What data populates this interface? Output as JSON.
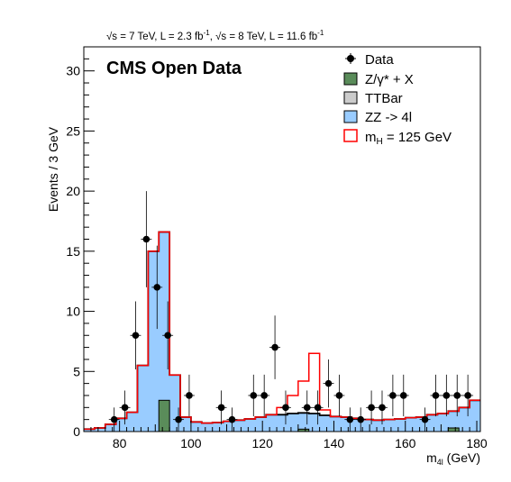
{
  "chart_data": {
    "type": "histogram",
    "header_parts": [
      "√s = 7 TeV, L = 2.3 fb",
      "-1",
      ", √s = 8 TeV, L = 11.6 fb",
      "-1"
    ],
    "title": "CMS Open Data",
    "xlabel_main": "m",
    "xlabel_sub": "4l",
    "xlabel_unit": " (GeV)",
    "ylabel": "Events / 3 GeV",
    "xlim": [
      70,
      181
    ],
    "ylim": [
      0,
      32
    ],
    "xticks": [
      80,
      100,
      120,
      140,
      160,
      180
    ],
    "yticks": [
      0,
      5,
      10,
      15,
      20,
      25,
      30
    ],
    "bin_width": 3,
    "bin_edges_start": 70,
    "stack": {
      "zx": [
        0,
        0,
        0,
        0,
        0,
        0,
        0,
        2.6,
        0,
        0,
        0,
        0,
        0,
        0,
        0,
        0,
        0,
        0,
        0,
        0,
        0.2,
        0,
        0,
        0,
        0,
        0,
        0,
        0,
        0,
        0,
        0,
        0,
        0,
        0,
        0.3,
        0,
        0
      ],
      "ttbar": [
        0,
        0,
        0,
        0,
        0,
        0,
        0,
        0,
        0,
        0,
        0,
        0,
        0,
        0,
        0,
        0,
        0,
        0,
        0,
        0,
        0,
        0,
        0,
        0,
        0,
        0,
        0,
        0,
        0,
        0,
        0,
        0,
        0,
        0,
        0,
        0,
        0
      ],
      "zz_total": [
        0.2,
        0.3,
        0.6,
        1.1,
        1.6,
        5.5,
        15.0,
        16.6,
        4.7,
        1.2,
        0.8,
        0.7,
        0.75,
        0.85,
        0.95,
        1.05,
        1.2,
        1.4,
        1.4,
        1.5,
        1.55,
        1.5,
        1.35,
        1.25,
        1.2,
        1.1,
        1.0,
        0.95,
        1.0,
        1.05,
        1.15,
        1.2,
        1.4,
        1.5,
        1.7,
        2.0,
        2.6
      ]
    },
    "signal_total": [
      0.2,
      0.3,
      0.6,
      1.1,
      1.6,
      5.5,
      15.0,
      16.6,
      4.7,
      1.2,
      0.8,
      0.7,
      0.75,
      0.85,
      0.95,
      1.05,
      1.2,
      1.4,
      2.0,
      3.0,
      4.2,
      6.5,
      1.8,
      1.25,
      1.2,
      1.1,
      1.0,
      0.95,
      1.0,
      1.05,
      1.15,
      1.2,
      1.4,
      1.5,
      1.7,
      2.0,
      2.6
    ],
    "data_points": [
      {
        "x": 78.5,
        "y": 1
      },
      {
        "x": 81.5,
        "y": 2
      },
      {
        "x": 84.5,
        "y": 8
      },
      {
        "x": 87.5,
        "y": 16
      },
      {
        "x": 90.5,
        "y": 12
      },
      {
        "x": 93.5,
        "y": 8
      },
      {
        "x": 96.5,
        "y": 1
      },
      {
        "x": 99.5,
        "y": 3
      },
      {
        "x": 108.5,
        "y": 2
      },
      {
        "x": 111.5,
        "y": 1
      },
      {
        "x": 117.5,
        "y": 3
      },
      {
        "x": 120.5,
        "y": 3
      },
      {
        "x": 123.5,
        "y": 7
      },
      {
        "x": 126.5,
        "y": 2
      },
      {
        "x": 132.5,
        "y": 2
      },
      {
        "x": 135.5,
        "y": 2
      },
      {
        "x": 138.5,
        "y": 4
      },
      {
        "x": 141.5,
        "y": 3
      },
      {
        "x": 144.5,
        "y": 1
      },
      {
        "x": 147.5,
        "y": 1
      },
      {
        "x": 150.5,
        "y": 2
      },
      {
        "x": 153.5,
        "y": 2
      },
      {
        "x": 156.5,
        "y": 3
      },
      {
        "x": 159.5,
        "y": 3
      },
      {
        "x": 165.5,
        "y": 1
      },
      {
        "x": 168.5,
        "y": 3
      },
      {
        "x": 171.5,
        "y": 3
      },
      {
        "x": 174.5,
        "y": 3
      },
      {
        "x": 177.5,
        "y": 3
      }
    ],
    "legend": [
      {
        "label": "Data",
        "marker": "point"
      },
      {
        "label": "Z/γ* + X",
        "marker": "box",
        "fill": "#5a8c5a"
      },
      {
        "label": "TTBar",
        "marker": "box",
        "fill": "#cccccc"
      },
      {
        "label": "ZZ -> 4l",
        "marker": "box",
        "fill": "#99ccff"
      },
      {
        "label": "m",
        "sub": "H",
        "tail": " = 125 GeV",
        "marker": "line",
        "stroke": "#ff0000"
      }
    ],
    "colors": {
      "zz": "#99ccff",
      "zx": "#5a8c5a",
      "ttbar": "#cccccc",
      "signal": "#ff0000",
      "data": "#000000"
    }
  }
}
